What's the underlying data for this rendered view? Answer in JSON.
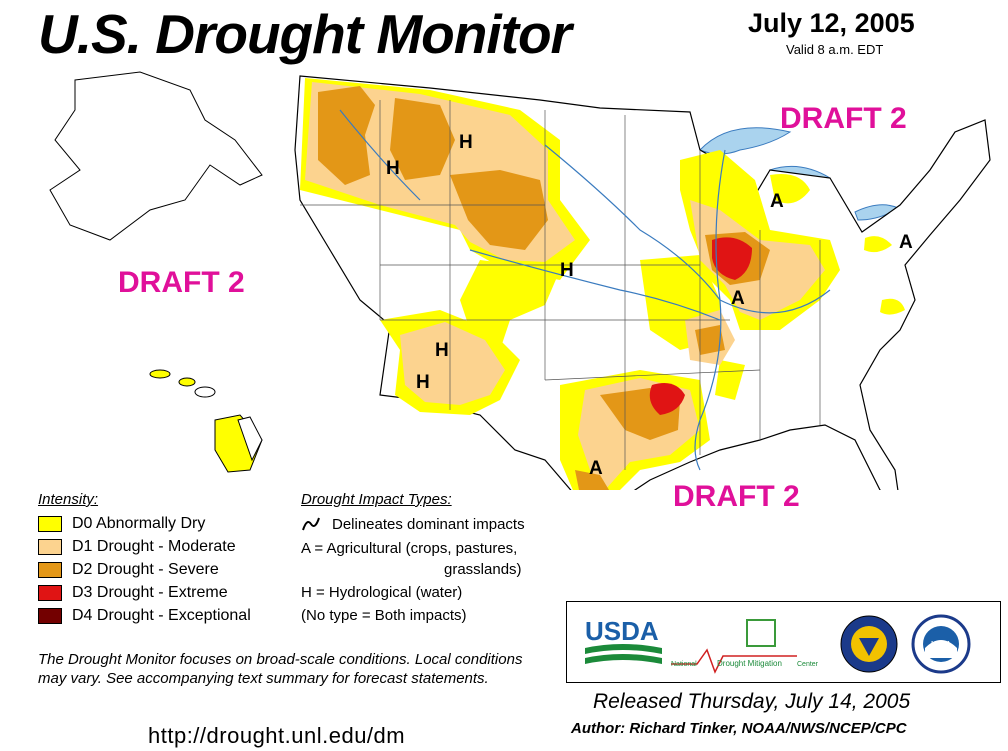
{
  "header": {
    "title": "U.S. Drought Monitor",
    "date": "July 12, 2005",
    "valid": "Valid 8 a.m. EDT"
  },
  "draft_labels": [
    "DRAFT 2",
    "DRAFT 2",
    "DRAFT 2"
  ],
  "map_labels": {
    "h": "H",
    "a": "A"
  },
  "legend": {
    "title": "Intensity:",
    "items": [
      {
        "label": "D0 Abnormally Dry",
        "color": "#ffff00"
      },
      {
        "label": "D1 Drought - Moderate",
        "color": "#fcd38f"
      },
      {
        "label": "D2 Drought - Severe",
        "color": "#e39717"
      },
      {
        "label": "D3 Drought - Extreme",
        "color": "#e01414"
      },
      {
        "label": "D4 Drought - Exceptional",
        "color": "#730000"
      }
    ]
  },
  "impacts": {
    "title": "Drought Impact Types:",
    "delineates": "Delineates dominant impacts",
    "agricultural": "A = Agricultural (crops, pastures,",
    "agricultural_cont": "grasslands)",
    "hydrological": "H = Hydrological (water)",
    "no_type": "(No type = Both impacts)"
  },
  "note": "The Drought Monitor focuses on broad-scale conditions. Local conditions may vary.  See accompanying text summary for forecast statements.",
  "url": "http://drought.unl.edu/dm",
  "logos": {
    "usda": "USDA",
    "ndmc_small": "National",
    "ndmc_main": "Drought Mitigation",
    "ndmc_end": "Center",
    "noaa": "NOAA"
  },
  "released": "Released Thursday, July 14, 2005",
  "author": "Author:  Richard Tinker, NOAA/NWS/NCEP/CPC",
  "colors": {
    "water": "#aad3ee",
    "draft": "#e0109a",
    "d0": "#ffff00",
    "d1": "#fcd38f",
    "d2": "#e39717",
    "d3": "#e01414",
    "d4": "#730000"
  }
}
